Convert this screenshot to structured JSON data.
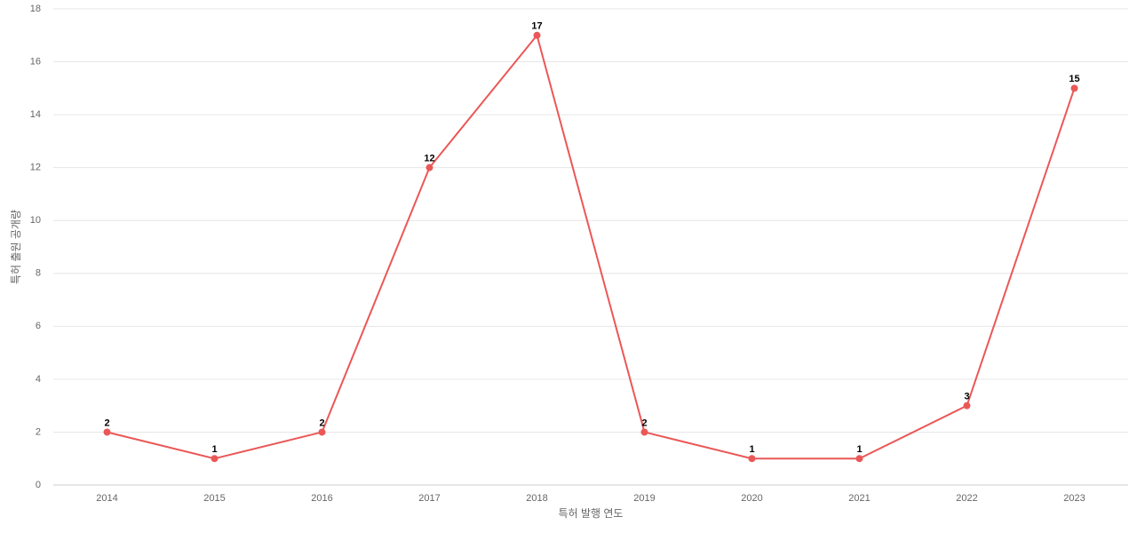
{
  "chart_data": {
    "type": "line",
    "x_label": "특허 발행 연도",
    "y_label": "특허 출원 공개량",
    "categories": [
      "2014",
      "2015",
      "2016",
      "2017",
      "2018",
      "2019",
      "2020",
      "2021",
      "2022",
      "2023"
    ],
    "series": [
      {
        "name": "특허 출원 공개량",
        "color": "#eb5757",
        "values": [
          2,
          1,
          2,
          12,
          17,
          2,
          1,
          1,
          3,
          15
        ]
      }
    ],
    "ylim": [
      0,
      18
    ],
    "yticks": [
      0,
      2,
      4,
      6,
      8,
      10,
      12,
      14,
      16,
      18
    ],
    "grid": true
  }
}
